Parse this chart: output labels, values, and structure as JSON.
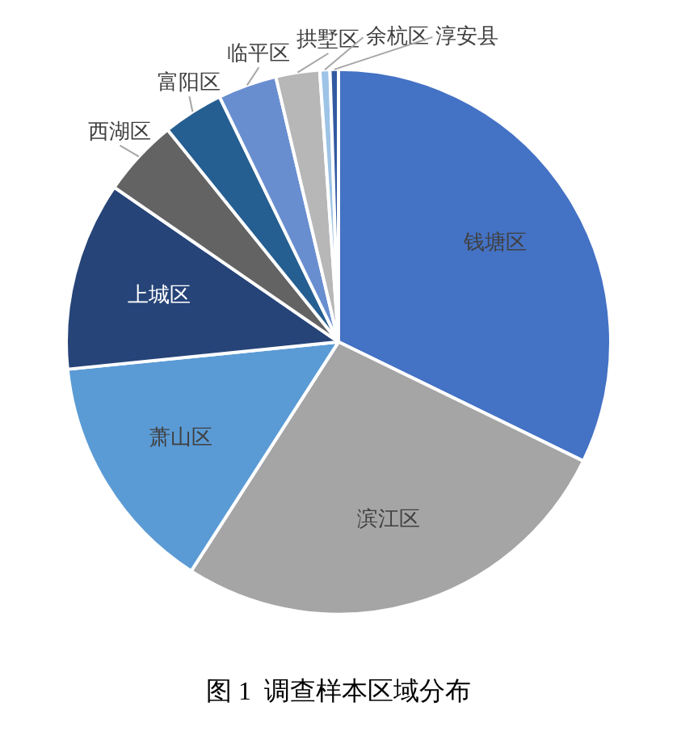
{
  "chart_data": {
    "type": "pie",
    "title": "图 1  调查样本区域分布",
    "categories": [
      "钱塘区",
      "滨江区",
      "萧山区",
      "上城区",
      "西湖区",
      "富阳区",
      "临平区",
      "拱墅区",
      "余杭区",
      "淳安县"
    ],
    "values": [
      32.2,
      26.9,
      14.3,
      11.2,
      4.6,
      3.6,
      3.5,
      2.6,
      0.6,
      0.5
    ],
    "colors": [
      "#4472c4",
      "#a5a5a5",
      "#5b9bd5",
      "#264478",
      "#636363",
      "#255e91",
      "#698ed0",
      "#b7b7b7",
      "#9dc3e6",
      "#335aa1"
    ],
    "legend": false
  }
}
